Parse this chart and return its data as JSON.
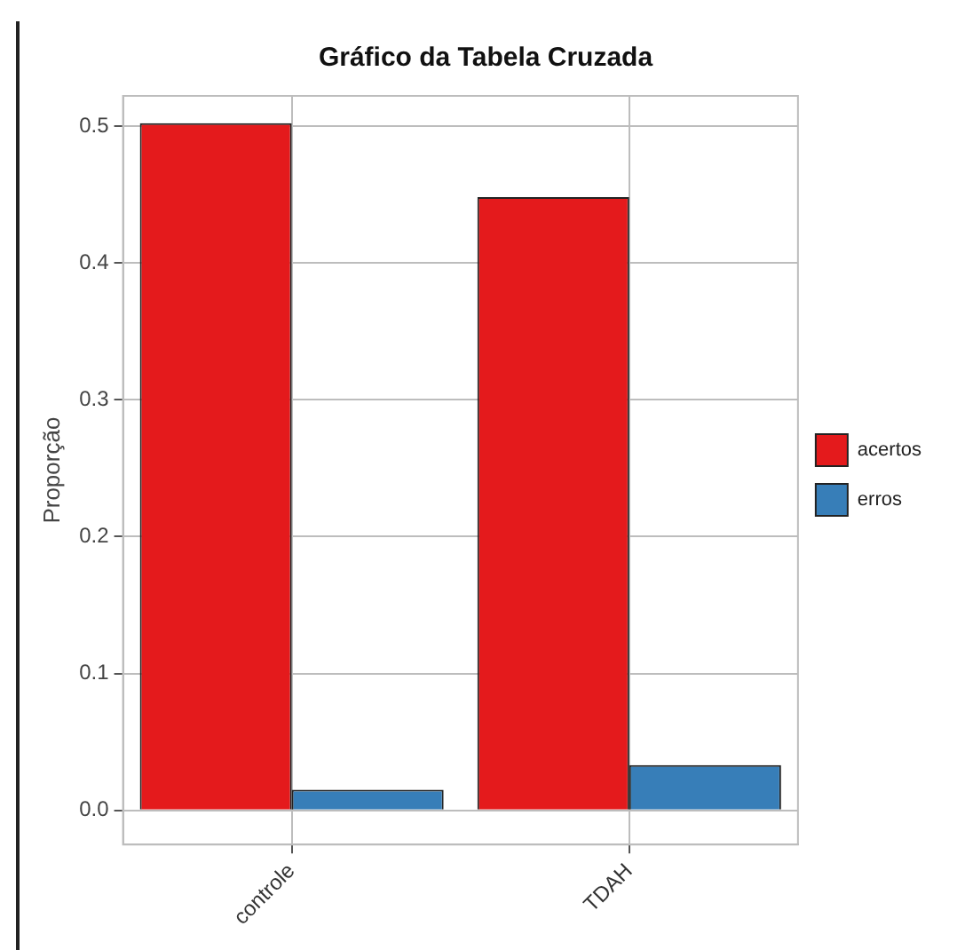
{
  "chart_data": {
    "type": "bar",
    "title": "Gráfico da Tabela Cruzada",
    "ylabel": "Proporção",
    "categories": [
      "controle",
      "TDAH"
    ],
    "series": [
      {
        "name": "acertos",
        "color": "#e41a1c",
        "values": [
          0.502,
          0.448
        ]
      },
      {
        "name": "erros",
        "color": "#377eb8",
        "values": [
          0.015,
          0.033
        ]
      }
    ],
    "ylim": [
      -0.025,
      0.522
    ],
    "yticks": [
      {
        "value": 0,
        "label": "0.0"
      },
      {
        "value": 0.1,
        "label": "0.1"
      },
      {
        "value": 0.2,
        "label": "0.2"
      },
      {
        "value": 0.3,
        "label": "0.3"
      },
      {
        "value": 0.4,
        "label": "0.4"
      },
      {
        "value": 0.5,
        "label": "0.5"
      }
    ],
    "grid": true,
    "legend": "right"
  }
}
